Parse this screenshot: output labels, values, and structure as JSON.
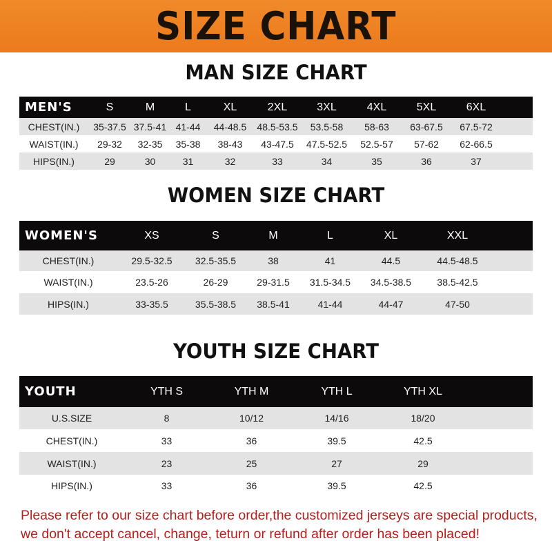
{
  "banner": {
    "title": "SIZE CHART",
    "color": "#ee8224"
  },
  "men": {
    "title": "MAN SIZE CHART",
    "header": [
      "MEN'S",
      "S",
      "M",
      "L",
      "XL",
      "2XL",
      "3XL",
      "4XL",
      "5XL",
      "6XL"
    ],
    "rows": [
      [
        "CHEST(IN.)",
        "35-37.5",
        "37.5-41",
        "41-44",
        "44-48.5",
        "48.5-53.5",
        "53.5-58",
        "58-63",
        "63-67.5",
        "67.5-72"
      ],
      [
        "WAIST(IN.)",
        "29-32",
        "32-35",
        "35-38",
        "38-43",
        "43-47.5",
        "47.5-52.5",
        "52.5-57",
        "57-62",
        "62-66.5"
      ],
      [
        "HIPS(IN.)",
        "29",
        "30",
        "31",
        "32",
        "33",
        "34",
        "35",
        "36",
        "37"
      ]
    ]
  },
  "women": {
    "title": "WOMEN SIZE CHART",
    "header": [
      "WOMEN'S",
      "XS",
      "S",
      "M",
      "L",
      "XL",
      "XXL"
    ],
    "rows": [
      [
        "CHEST(IN.)",
        "29.5-32.5",
        "32.5-35.5",
        "38",
        "41",
        "44.5",
        "44.5-48.5"
      ],
      [
        "WAIST(IN.)",
        "23.5-26",
        "26-29",
        "29-31.5",
        "31.5-34.5",
        "34.5-38.5",
        "38.5-42.5"
      ],
      [
        "HIPS(IN.)",
        "33-35.5",
        "35.5-38.5",
        "38.5-41",
        "41-44",
        "44-47",
        "47-50"
      ]
    ]
  },
  "youth": {
    "title": "YOUTH SIZE CHART",
    "header": [
      "YOUTH",
      "YTH S",
      "YTH M",
      "YTH L",
      "YTH XL"
    ],
    "rows": [
      [
        "U.S.SIZE",
        "8",
        "10/12",
        "14/16",
        "18/20"
      ],
      [
        "CHEST(IN.)",
        "33",
        "36",
        "39.5",
        "42.5"
      ],
      [
        "WAIST(IN.)",
        "23",
        "25",
        "27",
        "29"
      ],
      [
        "HIPS(IN.)",
        "33",
        "36",
        "39.5",
        "42.5"
      ]
    ]
  },
  "note": {
    "line1": "Please refer to our size chart before order,the customized jerseys are special products,",
    "line2": "we don't accept cancel, change, teturn or refund after order has been placed!",
    "color": "#b3201c"
  }
}
